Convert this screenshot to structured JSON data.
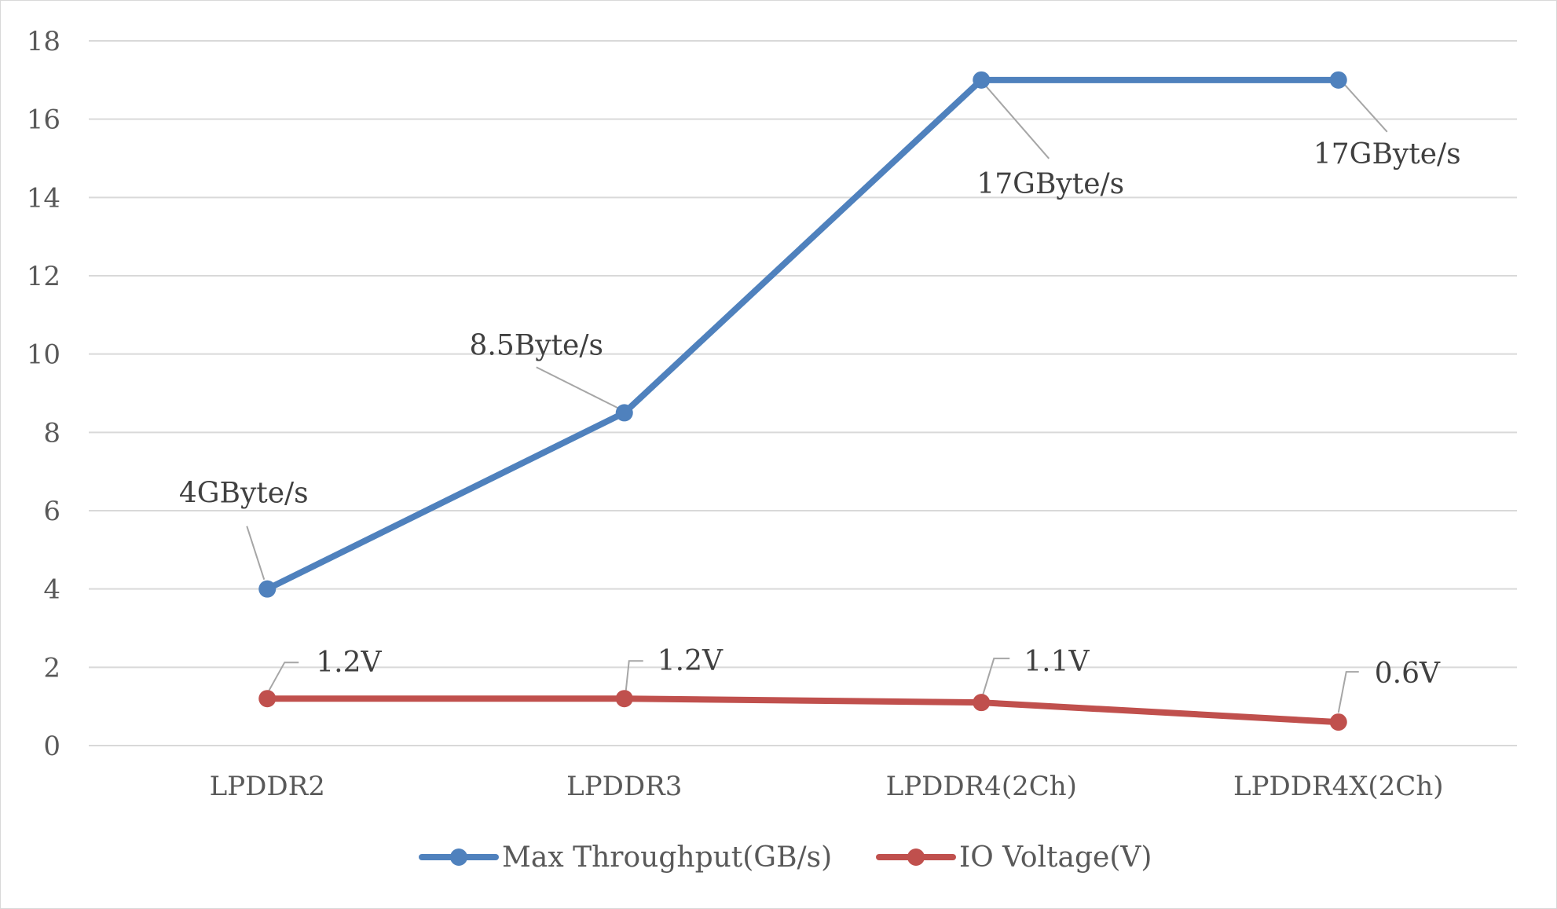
{
  "chart_data": {
    "type": "line",
    "categories": [
      "LPDDR2",
      "LPDDR3",
      "LPDDR4(2Ch)",
      "LPDDR4X(2Ch)"
    ],
    "ylim": [
      0,
      18
    ],
    "yticks": [
      0,
      2,
      4,
      6,
      8,
      10,
      12,
      14,
      16,
      18
    ],
    "grid": true,
    "legend_position": "bottom",
    "series": [
      {
        "name": "Max Throughput(GB/s)",
        "color": "#4f81bd",
        "values": [
          4,
          8.5,
          17,
          17
        ],
        "labels": [
          "4GByte/s",
          "8.5Byte/s",
          "17GByte/s",
          "17GByte/s"
        ]
      },
      {
        "name": "IO Voltage(V)",
        "color": "#c0504d",
        "values": [
          1.2,
          1.2,
          1.1,
          0.6
        ],
        "labels": [
          "1.2V",
          "1.2V",
          "1.1V",
          "0.6V"
        ]
      }
    ]
  }
}
